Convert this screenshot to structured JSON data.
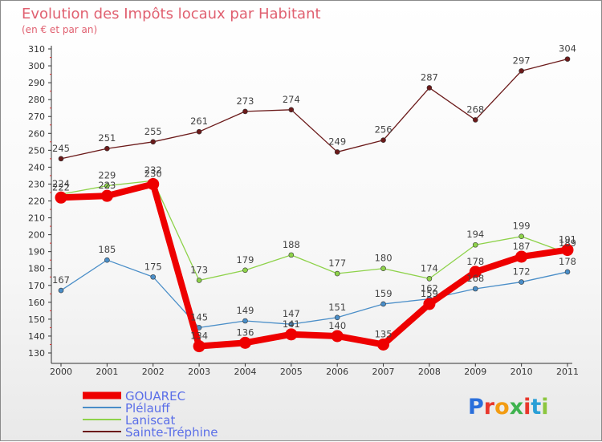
{
  "chart_data": {
    "type": "line",
    "title": "Evolution des Impôts locaux par Habitant",
    "subtitle": "(en € et par an)",
    "xlabel": "",
    "ylabel": "",
    "x": [
      "2000",
      "2001",
      "2002",
      "2003",
      "2004",
      "2005",
      "2006",
      "2007",
      "2008",
      "2009",
      "2010",
      "2011"
    ],
    "ylim": [
      130,
      310
    ],
    "yticks": [
      130,
      140,
      150,
      160,
      170,
      180,
      190,
      200,
      210,
      220,
      230,
      240,
      250,
      260,
      270,
      280,
      290,
      300,
      310
    ],
    "grid": false,
    "legend_position": "bottom-left",
    "series": [
      {
        "name": "Sainte-Tréphine",
        "color": "#6b1a1a",
        "values": [
          245,
          251,
          255,
          261,
          273,
          274,
          249,
          256,
          287,
          268,
          297,
          304
        ]
      },
      {
        "name": "Laniscat",
        "color": "#8ed24a",
        "values": [
          224,
          229,
          232,
          173,
          179,
          188,
          177,
          180,
          174,
          194,
          199,
          189
        ]
      },
      {
        "name": "Plélauff",
        "color": "#4a8ec8",
        "values": [
          167,
          185,
          175,
          145,
          149,
          147,
          151,
          159,
          162,
          168,
          172,
          178
        ]
      },
      {
        "name": "GOUAREC",
        "color": "#ee0000",
        "values": [
          222,
          223,
          230,
          134,
          136,
          141,
          140,
          135,
          159,
          178,
          187,
          191
        ]
      }
    ],
    "legend_order": [
      "GOUAREC",
      "Plélauff",
      "Laniscat",
      "Sainte-Tréphine"
    ]
  },
  "brand": {
    "text": "Proxiti"
  },
  "colors": {
    "title": "#e06070",
    "axis": "#333333",
    "label": "#444444",
    "legend_text": "#5a6ee8"
  }
}
